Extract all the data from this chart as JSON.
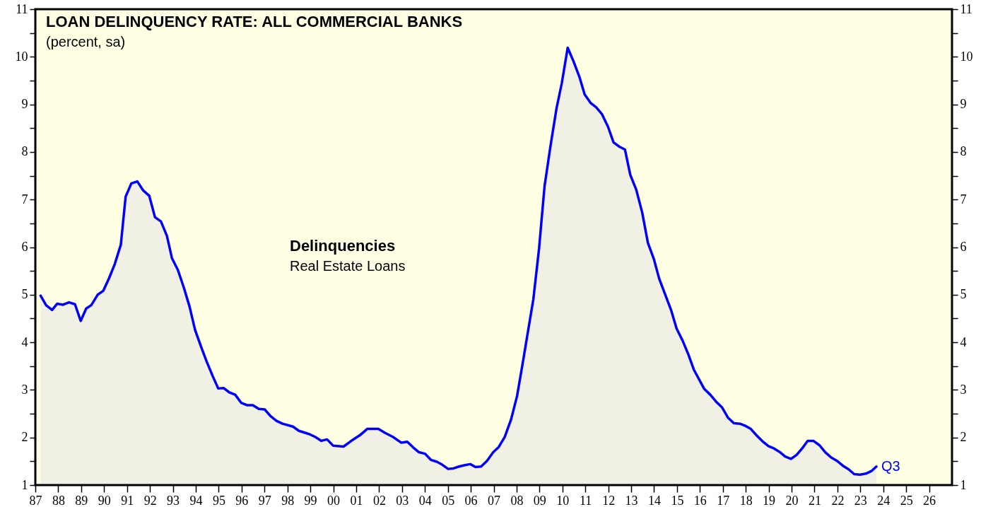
{
  "chart_data": {
    "type": "area",
    "title": "LOAN DELINQUENCY RATE: ALL COMMERCIAL BANKS",
    "subtitle": "(percent, sa)",
    "annotations": [
      "Delinquencies",
      "Real Estate Loans",
      {
        "text": "Q3",
        "x": 2023.7,
        "y": 1.39
      }
    ],
    "series": [
      {
        "color": "#0000ff",
        "x": [
          1987.23,
          1987.47,
          1987.73,
          1987.95,
          1988.21,
          1988.47,
          1988.73,
          1988.98,
          1989.22,
          1989.44,
          1989.72,
          1989.96,
          1990.22,
          1990.47,
          1990.73,
          1990.94,
          1991.19,
          1991.45,
          1991.71,
          1991.97,
          1992.22,
          1992.48,
          1992.74,
          1992.96,
          1993.22,
          1993.48,
          1993.73,
          1993.97,
          1994.23,
          1994.48,
          1994.74,
          1994.98,
          1995.21,
          1995.46,
          1995.72,
          1995.98,
          1996.23,
          1996.49,
          1996.75,
          1997.01,
          1997.26,
          1997.52,
          1997.78,
          1998.24,
          1998.5,
          1998.96,
          1999.22,
          1999.48,
          1999.73,
          1999.99,
          2000.45,
          2000.76,
          2001.17,
          2001.48,
          2001.97,
          2002.25,
          2002.61,
          2002.97,
          2003.23,
          2003.49,
          2003.74,
          2004.0,
          2004.26,
          2004.52,
          2004.75,
          2005.01,
          2005.24,
          2005.49,
          2005.75,
          2005.98,
          2006.21,
          2006.45,
          2006.71,
          2006.98,
          2007.22,
          2007.48,
          2007.76,
          2008.02,
          2008.27,
          2008.48,
          2008.73,
          2008.98,
          2009.22,
          2009.48,
          2009.74,
          2009.97,
          2010.23,
          2010.48,
          2010.74,
          2010.97,
          2011.23,
          2011.47,
          2011.73,
          2011.99,
          2012.23,
          2012.49,
          2012.73,
          2012.96,
          2013.22,
          2013.48,
          2013.73,
          2013.99,
          2014.22,
          2014.48,
          2014.74,
          2014.98,
          2015.24,
          2015.5,
          2015.73,
          2016.19,
          2016.45,
          2016.71,
          2016.97,
          2017.22,
          2017.48,
          2017.74,
          2017.96,
          2018.22,
          2018.48,
          2018.73,
          2018.99,
          2019.23,
          2019.47,
          2019.72,
          2019.97,
          2020.21,
          2020.46,
          2020.7,
          2020.95,
          2021.21,
          2021.47,
          2021.73,
          2021.98,
          2022.23,
          2022.49,
          2022.73,
          2022.98,
          2023.24,
          2023.5,
          2023.7
        ],
        "values": [
          4.98,
          4.78,
          4.68,
          4.81,
          4.79,
          4.84,
          4.8,
          4.45,
          4.71,
          4.78,
          5.0,
          5.08,
          5.35,
          5.65,
          6.05,
          7.06,
          7.34,
          7.38,
          7.19,
          7.08,
          6.63,
          6.54,
          6.24,
          5.77,
          5.52,
          5.15,
          4.75,
          4.26,
          3.91,
          3.59,
          3.29,
          3.03,
          3.04,
          2.95,
          2.9,
          2.73,
          2.68,
          2.68,
          2.6,
          2.59,
          2.45,
          2.35,
          2.29,
          2.23,
          2.14,
          2.07,
          2.01,
          1.93,
          1.96,
          1.83,
          1.81,
          1.92,
          2.05,
          2.18,
          2.18,
          2.1,
          2.01,
          1.89,
          1.91,
          1.79,
          1.69,
          1.66,
          1.53,
          1.49,
          1.43,
          1.34,
          1.35,
          1.39,
          1.42,
          1.44,
          1.38,
          1.39,
          1.51,
          1.69,
          1.8,
          2.01,
          2.38,
          2.87,
          3.57,
          4.18,
          4.9,
          5.97,
          7.28,
          8.13,
          8.91,
          9.44,
          10.19,
          9.91,
          9.58,
          9.21,
          9.03,
          8.94,
          8.79,
          8.53,
          8.2,
          8.11,
          8.05,
          7.52,
          7.21,
          6.73,
          6.09,
          5.75,
          5.34,
          5.01,
          4.68,
          4.29,
          4.04,
          3.74,
          3.43,
          3.02,
          2.9,
          2.75,
          2.63,
          2.42,
          2.3,
          2.29,
          2.25,
          2.18,
          2.04,
          1.92,
          1.82,
          1.77,
          1.7,
          1.6,
          1.55,
          1.63,
          1.77,
          1.93,
          1.93,
          1.84,
          1.69,
          1.58,
          1.51,
          1.41,
          1.33,
          1.23,
          1.22,
          1.24,
          1.3,
          1.39
        ]
      }
    ],
    "xlim": [
      1987,
      2027
    ],
    "xticks": [
      {
        "value": 1987,
        "label": "87"
      },
      {
        "value": 1988,
        "label": "88"
      },
      {
        "value": 1989,
        "label": "89"
      },
      {
        "value": 1990,
        "label": "90"
      },
      {
        "value": 1991,
        "label": "91"
      },
      {
        "value": 1992,
        "label": "92"
      },
      {
        "value": 1993,
        "label": "93"
      },
      {
        "value": 1994,
        "label": "94"
      },
      {
        "value": 1995,
        "label": "95"
      },
      {
        "value": 1996,
        "label": "96"
      },
      {
        "value": 1997,
        "label": "97"
      },
      {
        "value": 1998,
        "label": "98"
      },
      {
        "value": 1999,
        "label": "99"
      },
      {
        "value": 2000,
        "label": "00"
      },
      {
        "value": 2001,
        "label": "01"
      },
      {
        "value": 2002,
        "label": "02"
      },
      {
        "value": 2003,
        "label": "03"
      },
      {
        "value": 2004,
        "label": "04"
      },
      {
        "value": 2005,
        "label": "05"
      },
      {
        "value": 2006,
        "label": "06"
      },
      {
        "value": 2007,
        "label": "07"
      },
      {
        "value": 2008,
        "label": "08"
      },
      {
        "value": 2009,
        "label": "09"
      },
      {
        "value": 2010,
        "label": "10"
      },
      {
        "value": 2011,
        "label": "11"
      },
      {
        "value": 2012,
        "label": "12"
      },
      {
        "value": 2013,
        "label": "13"
      },
      {
        "value": 2014,
        "label": "14"
      },
      {
        "value": 2015,
        "label": "15"
      },
      {
        "value": 2016,
        "label": "16"
      },
      {
        "value": 2017,
        "label": "17"
      },
      {
        "value": 2018,
        "label": "18"
      },
      {
        "value": 2019,
        "label": "19"
      },
      {
        "value": 2020,
        "label": "20"
      },
      {
        "value": 2021,
        "label": "21"
      },
      {
        "value": 2022,
        "label": "22"
      },
      {
        "value": 2023,
        "label": "23"
      },
      {
        "value": 2024,
        "label": "24"
      },
      {
        "value": 2025,
        "label": "25"
      },
      {
        "value": 2026,
        "label": "26"
      }
    ],
    "ylim": [
      1,
      11
    ],
    "yticks": [
      1,
      {
        "value": 1.5,
        "label": null
      },
      2,
      {
        "value": 2.5,
        "label": null
      },
      3,
      {
        "value": 3.5,
        "label": null
      },
      4,
      {
        "value": 4.5,
        "label": null
      },
      5,
      {
        "value": 5.5,
        "label": null
      },
      6,
      {
        "value": 6.5,
        "label": null
      },
      7,
      {
        "value": 7.5,
        "label": null
      },
      8,
      {
        "value": 8.5,
        "label": null
      },
      9,
      {
        "value": 9.5,
        "label": null
      },
      10,
      {
        "value": 10.5,
        "label": null
      },
      11
    ],
    "y2lim": [
      1,
      11
    ],
    "y2ticks": [
      1,
      {
        "value": 1.5,
        "label": null
      },
      2,
      {
        "value": 2.5,
        "label": null
      },
      3,
      {
        "value": 3.5,
        "label": null
      },
      4,
      {
        "value": 4.5,
        "label": null
      },
      5,
      {
        "value": 5.5,
        "label": null
      },
      6,
      {
        "value": 6.5,
        "label": null
      },
      7,
      {
        "value": 7.5,
        "label": null
      },
      8,
      {
        "value": 8.5,
        "label": null
      },
      9,
      {
        "value": 9.5,
        "label": null
      },
      10,
      {
        "value": 10.5,
        "label": null
      },
      11
    ]
  }
}
